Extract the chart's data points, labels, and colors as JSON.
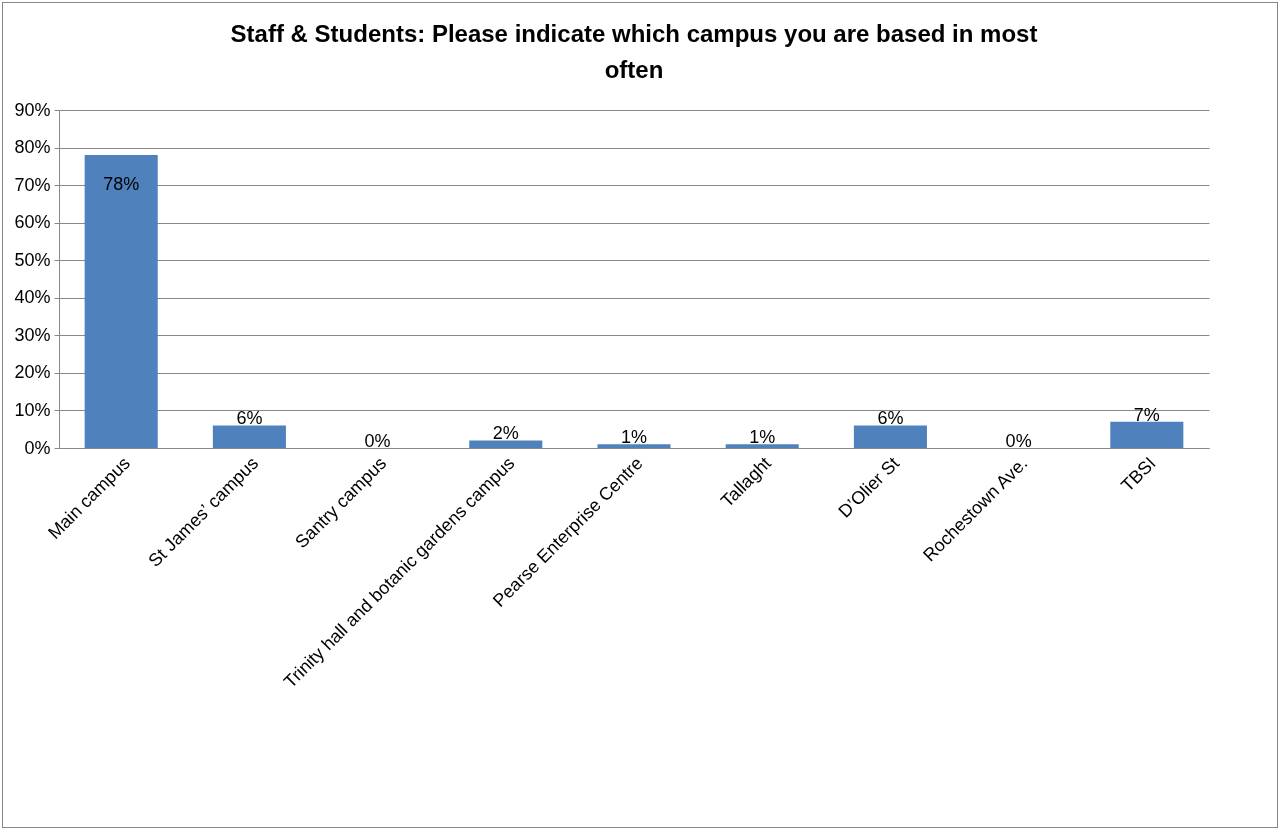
{
  "chart_data": {
    "type": "bar",
    "title": "Staff & Students: Please indicate which campus you are based in most often",
    "categories": [
      "Main campus",
      "St James’ campus",
      "Santry campus",
      "Trinity hall and botanic gardens campus",
      "Pearse Enterprise Centre",
      "Tallaght",
      "D’Olier St",
      "Rochestown Ave.",
      "TBSI"
    ],
    "values": [
      78,
      6,
      0,
      2,
      1,
      1,
      6,
      0,
      7
    ],
    "value_labels": [
      "78%",
      "6%",
      "0%",
      "2%",
      "1%",
      "1%",
      "6%",
      "0%",
      "7%"
    ],
    "color": "#4f81bd",
    "ylim": [
      0,
      90
    ],
    "yticks": [
      {
        "value": 0,
        "label": "0%"
      },
      {
        "value": 10,
        "label": "10%"
      },
      {
        "value": 20,
        "label": "20%"
      },
      {
        "value": 30,
        "label": "30%"
      },
      {
        "value": 40,
        "label": "40%"
      },
      {
        "value": 50,
        "label": "50%"
      },
      {
        "value": 60,
        "label": "60%"
      },
      {
        "value": 70,
        "label": "70%"
      },
      {
        "value": 80,
        "label": "80%"
      },
      {
        "value": 90,
        "label": "90%"
      }
    ],
    "grid": "y"
  }
}
